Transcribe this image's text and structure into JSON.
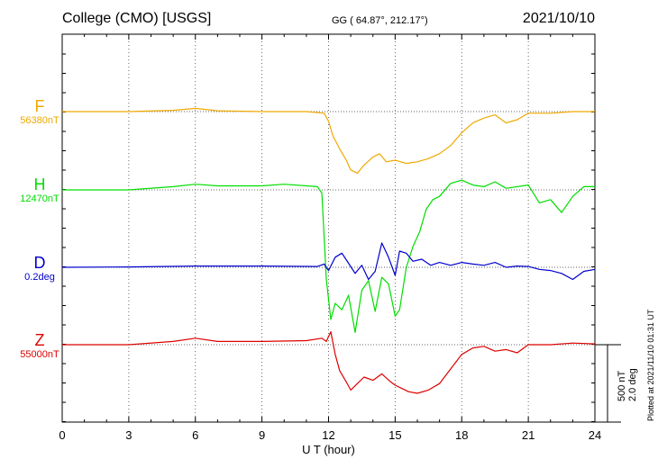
{
  "header": {
    "station": "College (CMO)  [USGS]",
    "coords": "GG ( 64.87°, 212.17°)",
    "date": "2021/10/10"
  },
  "footer": {
    "plotted": "Plotted at 2021/11/10 01:31  UT",
    "scale_line1": "500 nT",
    "scale_line2": "2.0 deg"
  },
  "components": [
    {
      "name": "F",
      "baseline": "56380nT",
      "color": "#f0a800"
    },
    {
      "name": "H",
      "baseline": "12470nT",
      "color": "#00dd00"
    },
    {
      "name": "D",
      "baseline": "0.2deg",
      "color": "#0000cc"
    },
    {
      "name": "Z",
      "baseline": "55000nT",
      "color": "#dd0000"
    }
  ],
  "chart_data": {
    "type": "line",
    "title": "College (CMO)  [USGS]",
    "xlabel": "U T (hour)",
    "ylabel": "",
    "xlim": [
      0,
      24
    ],
    "x_ticks": [
      0,
      3,
      6,
      9,
      12,
      15,
      18,
      21,
      24
    ],
    "grid": true,
    "scale_bar": "500 nT / 2.0 deg",
    "series": [
      {
        "name": "F",
        "unit": "nT",
        "baseline": 56380,
        "color": "#f0a800",
        "x": [
          0,
          3,
          5,
          6,
          7,
          9,
          11,
          11.8,
          12.0,
          12.2,
          12.5,
          12.8,
          13.0,
          13.3,
          13.6,
          14.0,
          14.3,
          14.6,
          15.0,
          15.5,
          16.0,
          16.5,
          17.0,
          17.5,
          18.0,
          18.5,
          19.0,
          19.5,
          20.0,
          20.5,
          21.0,
          22.0,
          23.0,
          24.0
        ],
        "y": [
          0,
          0,
          8,
          20,
          5,
          0,
          0,
          -10,
          -60,
          -150,
          -230,
          -300,
          -360,
          -380,
          -330,
          -280,
          -260,
          -310,
          -300,
          -320,
          -310,
          -290,
          -260,
          -210,
          -130,
          -70,
          -40,
          -20,
          -70,
          -50,
          -10,
          -10,
          0,
          0
        ]
      },
      {
        "name": "H",
        "unit": "nT",
        "baseline": 12470,
        "color": "#00dd00",
        "x": [
          0,
          3,
          5,
          6,
          7,
          9,
          10,
          11.5,
          11.7,
          11.9,
          12.1,
          12.3,
          12.6,
          12.9,
          13.2,
          13.5,
          13.8,
          14.1,
          14.4,
          14.7,
          15.0,
          15.2,
          15.5,
          15.8,
          16.1,
          16.4,
          16.7,
          17.0,
          17.5,
          18.0,
          18.5,
          19.0,
          19.5,
          20.0,
          21.0,
          21.5,
          22.0,
          22.5,
          23.0,
          23.5,
          24.0
        ],
        "y": [
          0,
          0,
          20,
          35,
          25,
          25,
          35,
          20,
          -20,
          -550,
          -800,
          -700,
          -740,
          -650,
          -880,
          -620,
          -560,
          -750,
          -540,
          -580,
          -780,
          -740,
          -480,
          -350,
          -260,
          -120,
          -60,
          -40,
          40,
          60,
          30,
          20,
          50,
          10,
          30,
          -80,
          -60,
          -140,
          -40,
          20,
          20
        ]
      },
      {
        "name": "D",
        "unit": "deg",
        "baseline": 0.2,
        "color": "#0000cc",
        "x": [
          0,
          3,
          6,
          9,
          11.5,
          11.8,
          12.0,
          12.3,
          12.6,
          12.9,
          13.2,
          13.5,
          13.8,
          14.1,
          14.4,
          14.7,
          15.0,
          15.2,
          15.5,
          15.8,
          16.2,
          16.6,
          17.0,
          17.5,
          18.0,
          18.5,
          19.0,
          19.5,
          20.0,
          20.5,
          21.0,
          21.5,
          22.0,
          22.5,
          23.0,
          23.5,
          24.0
        ],
        "y": [
          0,
          0.01,
          0.03,
          0.03,
          0.02,
          0.08,
          -0.08,
          0.25,
          0.35,
          0.1,
          -0.15,
          0.05,
          -0.3,
          -0.1,
          0.6,
          0.25,
          -0.2,
          0.4,
          0.35,
          0.15,
          0.2,
          0.05,
          0.12,
          0.05,
          0.12,
          0.08,
          0.05,
          0.12,
          0.0,
          0.03,
          0.02,
          -0.05,
          -0.08,
          -0.15,
          -0.3,
          -0.1,
          -0.05
        ]
      },
      {
        "name": "Z",
        "unit": "nT",
        "baseline": 55000,
        "color": "#dd0000",
        "x": [
          0,
          3,
          5,
          6,
          7,
          9,
          11,
          11.7,
          11.9,
          12.1,
          12.3,
          12.5,
          12.8,
          13.0,
          13.3,
          13.6,
          14.0,
          14.4,
          14.8,
          15.0,
          15.3,
          15.6,
          16.0,
          16.5,
          17.0,
          17.5,
          18.0,
          18.5,
          19.0,
          19.5,
          20.0,
          20.5,
          21.0,
          22.0,
          23.0,
          24.0
        ],
        "y": [
          0,
          0,
          20,
          40,
          20,
          20,
          25,
          40,
          20,
          80,
          -60,
          -160,
          -230,
          -280,
          -240,
          -200,
          -220,
          -180,
          -230,
          -250,
          -270,
          -290,
          -300,
          -280,
          -240,
          -150,
          -60,
          -20,
          -10,
          -40,
          -30,
          -50,
          0,
          0,
          10,
          5
        ]
      }
    ]
  }
}
